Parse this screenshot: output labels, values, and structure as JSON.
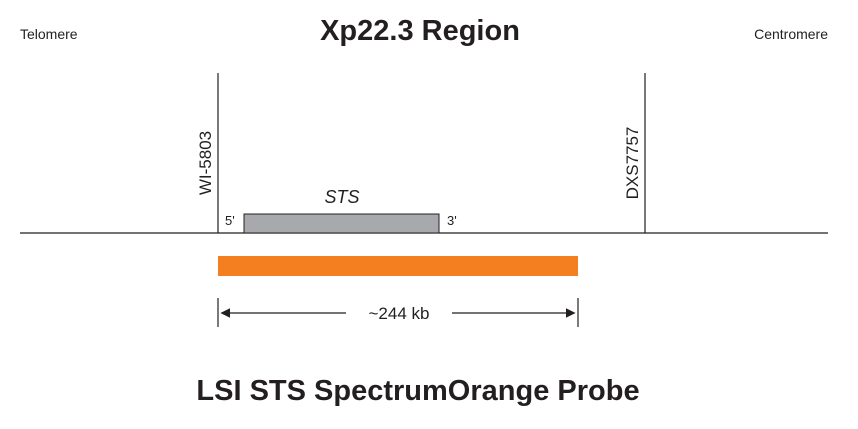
{
  "header": {
    "title": "Xp22.3 Region",
    "left_label": "Telomere",
    "right_label": "Centromere"
  },
  "markers": [
    {
      "label": "WI-5803"
    },
    {
      "label": "DXS7757"
    }
  ],
  "sts": {
    "label": "STS",
    "five_prime": "5'",
    "three_prime": "3'"
  },
  "probe": {
    "size_label": "~244 kb"
  },
  "footer": {
    "title": "LSI STS SpectrumOrange Probe"
  }
}
